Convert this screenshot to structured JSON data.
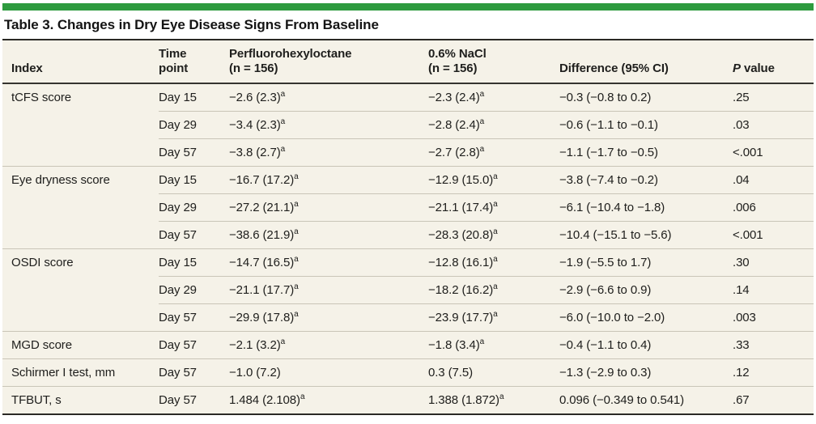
{
  "colors": {
    "accent_green": "#2e9b3f",
    "table_background": "#f5f2e8",
    "text": "#20201e"
  },
  "title": "Table 3. Changes in Dry Eye Disease Signs From Baseline",
  "table": {
    "header": {
      "index": "Index",
      "time_line1": "Time",
      "time_line2": "point",
      "pfho_line1": "Perfluorohexyloctane",
      "pfho_line2": "(n = 156)",
      "nacl_line1": "0.6% NaCl",
      "nacl_line2": "(n = 156)",
      "difference": "Difference (95% CI)",
      "p_italic": "P",
      "p_rest": " value"
    },
    "rows": [
      {
        "index": "tCFS score",
        "time": "Day 15",
        "pfho": "−2.6 (2.3)",
        "pfho_sup": "a",
        "nacl": "−2.3 (2.4)",
        "nacl_sup": "a",
        "diff": "−0.3 (−0.8 to 0.2)",
        "p": ".25",
        "group_start": true
      },
      {
        "index": "",
        "time": "Day 29",
        "pfho": "−3.4 (2.3)",
        "pfho_sup": "a",
        "nacl": "−2.8 (2.4)",
        "nacl_sup": "a",
        "diff": "−0.6 (−1.1 to −0.1)",
        "p": ".03",
        "group_start": false
      },
      {
        "index": "",
        "time": "Day 57",
        "pfho": "−3.8 (2.7)",
        "pfho_sup": "a",
        "nacl": "−2.7 (2.8)",
        "nacl_sup": "a",
        "diff": "−1.1 (−1.7 to −0.5)",
        "p": "<.001",
        "group_start": false
      },
      {
        "index": "Eye dryness score",
        "time": "Day 15",
        "pfho": "−16.7 (17.2)",
        "pfho_sup": "a",
        "nacl": "−12.9 (15.0)",
        "nacl_sup": "a",
        "diff": "−3.8 (−7.4 to −0.2)",
        "p": ".04",
        "group_start": true
      },
      {
        "index": "",
        "time": "Day 29",
        "pfho": "−27.2 (21.1)",
        "pfho_sup": "a",
        "nacl": "−21.1 (17.4)",
        "nacl_sup": "a",
        "diff": "−6.1 (−10.4 to −1.8)",
        "p": ".006",
        "group_start": false
      },
      {
        "index": "",
        "time": "Day 57",
        "pfho": "−38.6 (21.9)",
        "pfho_sup": "a",
        "nacl": "−28.3 (20.8)",
        "nacl_sup": "a",
        "diff": "−10.4 (−15.1 to −5.6)",
        "p": "<.001",
        "group_start": false
      },
      {
        "index": "OSDI score",
        "time": "Day 15",
        "pfho": "−14.7 (16.5)",
        "pfho_sup": "a",
        "nacl": "−12.8 (16.1)",
        "nacl_sup": "a",
        "diff": "−1.9 (−5.5 to 1.7)",
        "p": ".30",
        "group_start": true
      },
      {
        "index": "",
        "time": "Day 29",
        "pfho": "−21.1 (17.7)",
        "pfho_sup": "a",
        "nacl": "−18.2 (16.2)",
        "nacl_sup": "a",
        "diff": "−2.9 (−6.6 to 0.9)",
        "p": ".14",
        "group_start": false
      },
      {
        "index": "",
        "time": "Day 57",
        "pfho": "−29.9 (17.8)",
        "pfho_sup": "a",
        "nacl": "−23.9 (17.7)",
        "nacl_sup": "a",
        "diff": "−6.0 (−10.0 to −2.0)",
        "p": ".003",
        "group_start": false
      },
      {
        "index": "MGD score",
        "time": "Day 57",
        "pfho": "−2.1 (3.2)",
        "pfho_sup": "a",
        "nacl": "−1.8 (3.4)",
        "nacl_sup": "a",
        "diff": "−0.4 (−1.1 to 0.4)",
        "p": ".33",
        "group_start": true
      },
      {
        "index": "Schirmer I test, mm",
        "time": "Day 57",
        "pfho": "−1.0 (7.2)",
        "pfho_sup": "",
        "nacl": "0.3 (7.5)",
        "nacl_sup": "",
        "diff": "−1.3 (−2.9 to 0.3)",
        "p": ".12",
        "group_start": true
      },
      {
        "index": "TFBUT, s",
        "time": "Day 57",
        "pfho": "1.484 (2.108)",
        "pfho_sup": "a",
        "nacl": "1.388 (1.872)",
        "nacl_sup": "a",
        "diff": "0.096 (−0.349 to 0.541)",
        "p": ".67",
        "group_start": true
      }
    ]
  }
}
